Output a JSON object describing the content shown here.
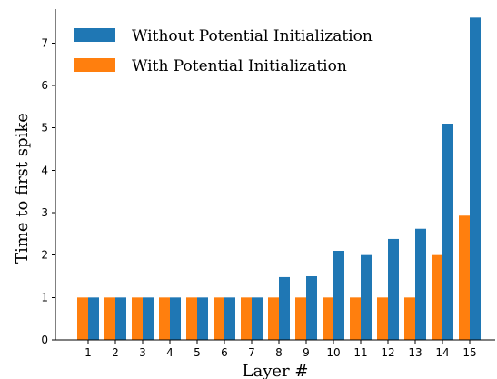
{
  "chart_data": {
    "type": "bar",
    "title": "",
    "xlabel": "Layer #",
    "ylabel": "Time to first spike",
    "categories": [
      "1",
      "2",
      "3",
      "4",
      "5",
      "6",
      "7",
      "8",
      "9",
      "10",
      "11",
      "12",
      "13",
      "14",
      "15"
    ],
    "ylim": [
      0,
      7.8
    ],
    "yticks": [
      "0",
      "1",
      "2",
      "3",
      "4",
      "5",
      "6",
      "7"
    ],
    "grid": false,
    "legend_position": "top-left",
    "series": [
      {
        "name": "With Potential Initialization",
        "color": "#ff7f0e",
        "values": [
          1,
          1,
          1,
          1,
          1,
          1,
          1,
          1,
          1,
          1,
          1,
          1,
          1,
          2,
          2.93
        ]
      },
      {
        "name": "Without Potential Initialization",
        "color": "#1f77b4",
        "values": [
          1,
          1,
          1,
          1,
          1,
          1,
          1,
          1.48,
          1.5,
          2.1,
          2.0,
          2.38,
          2.62,
          5.1,
          7.6
        ]
      }
    ],
    "legend": [
      {
        "name": "Without Potential Initialization",
        "color": "#1f77b4"
      },
      {
        "name": "With Potential Initialization",
        "color": "#ff7f0e"
      }
    ]
  }
}
